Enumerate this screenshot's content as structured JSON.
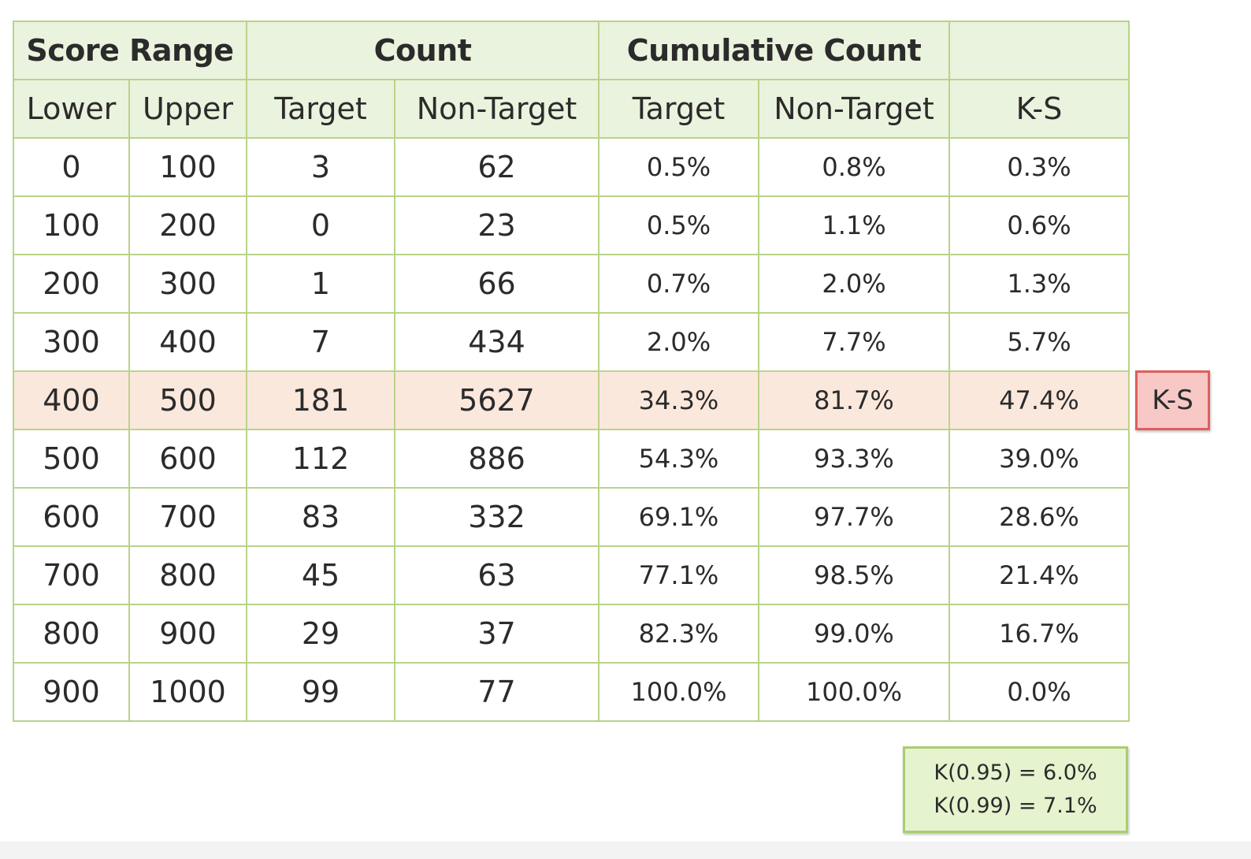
{
  "table": {
    "group_headers": [
      "Score Range",
      "Count",
      "Cumulative Count",
      ""
    ],
    "column_headers": [
      "Lower",
      "Upper",
      "Target",
      "Non-Target",
      "Target",
      "Non-Target",
      "K-S"
    ],
    "rows": [
      [
        "0",
        "100",
        "3",
        "62",
        "0.5%",
        "0.8%",
        "0.3%"
      ],
      [
        "100",
        "200",
        "0",
        "23",
        "0.5%",
        "1.1%",
        "0.6%"
      ],
      [
        "200",
        "300",
        "1",
        "66",
        "0.7%",
        "2.0%",
        "1.3%"
      ],
      [
        "300",
        "400",
        "7",
        "434",
        "2.0%",
        "7.7%",
        "5.7%"
      ],
      [
        "400",
        "500",
        "181",
        "5627",
        "34.3%",
        "81.7%",
        "47.4%"
      ],
      [
        "500",
        "600",
        "112",
        "886",
        "54.3%",
        "93.3%",
        "39.0%"
      ],
      [
        "600",
        "700",
        "83",
        "332",
        "69.1%",
        "97.7%",
        "28.6%"
      ],
      [
        "700",
        "800",
        "45",
        "63",
        "77.1%",
        "98.5%",
        "21.4%"
      ],
      [
        "800",
        "900",
        "29",
        "37",
        "82.3%",
        "99.0%",
        "16.7%"
      ],
      [
        "900",
        "1000",
        "99",
        "77",
        "100.0%",
        "100.0%",
        "0.0%"
      ]
    ],
    "highlighted_row_index": 4
  },
  "ks_badge": "K-S",
  "critical_values": {
    "line1": "K(0.95) = 6.0%",
    "line2": "K(0.99) = 7.1%"
  },
  "colors": {
    "grid": "#b9d38a",
    "header_bg": "#eaf3dd",
    "highlight_bg": "#fbe8dd",
    "badge_bg": "#f7c8c6",
    "badge_border": "#e05e5c",
    "note_bg": "#e6f3cf"
  }
}
